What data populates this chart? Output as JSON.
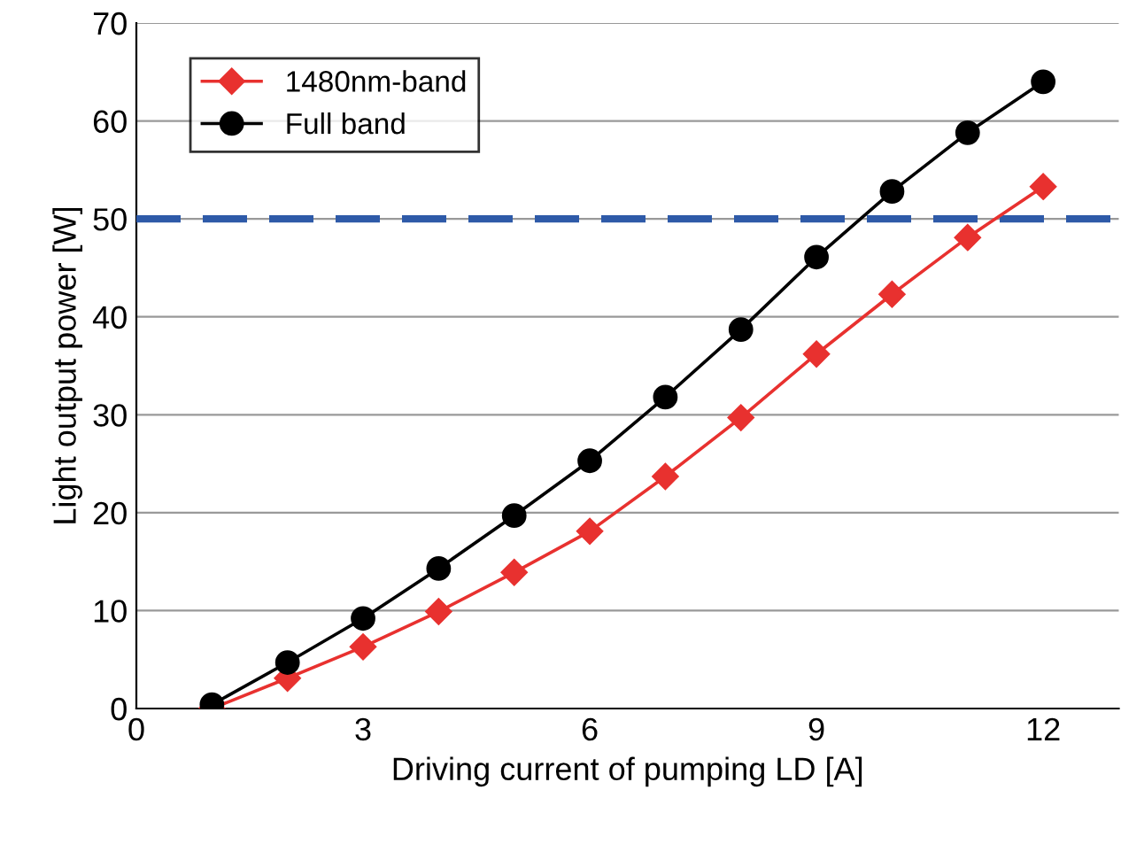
{
  "chart_data": {
    "type": "line",
    "xlabel": "Driving current of pumping LD [A]",
    "ylabel": "Light output power [W]",
    "x": [
      1,
      2,
      3,
      4,
      5,
      6,
      7,
      8,
      9,
      10,
      11,
      12
    ],
    "series": [
      {
        "name": "1480nm-band",
        "color": "#e8312f",
        "marker": "diamond",
        "values": [
          0.0,
          3.1,
          6.3,
          9.9,
          13.9,
          18.1,
          23.7,
          29.7,
          36.2,
          42.3,
          48.1,
          53.3
        ]
      },
      {
        "name": "Full band",
        "color": "#000000",
        "marker": "circle",
        "values": [
          0.4,
          4.7,
          9.2,
          14.3,
          19.7,
          25.3,
          31.8,
          38.7,
          46.1,
          52.8,
          58.8,
          64.0
        ]
      }
    ],
    "xlim": [
      0,
      13
    ],
    "xticks": [
      0,
      3,
      6,
      9,
      12
    ],
    "ylim": [
      0,
      70
    ],
    "yticks": [
      0,
      10,
      20,
      30,
      40,
      50,
      60,
      70
    ],
    "ref_lines": [
      {
        "axis": "y",
        "value": 50,
        "color": "#2e5aa8",
        "line_style": "dashed"
      }
    ],
    "grid": "y",
    "legend": "top left",
    "line_style": "solid"
  }
}
